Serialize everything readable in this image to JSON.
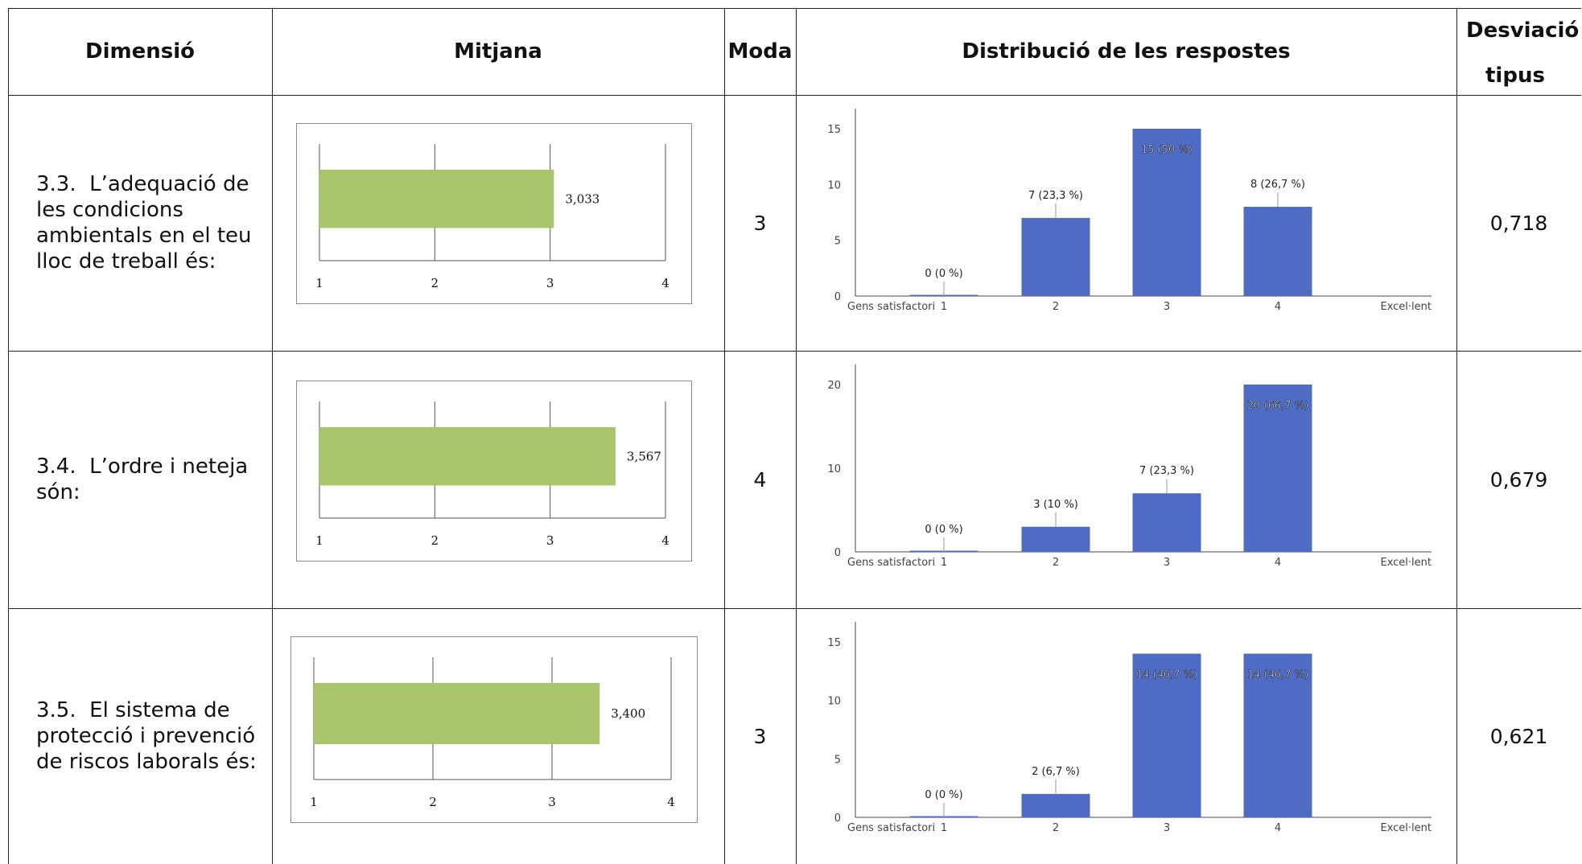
{
  "table": {
    "headers": {
      "dimension": "Dimensió",
      "mean": "Mitjana",
      "mode": "Moda",
      "distribution": "Distribució de les respostes",
      "stddev_line1": "Desviació",
      "stddev_line2": "tipus"
    },
    "rows": [
      {
        "number": "3.3.",
        "label": "L’adequació de les condicions ambientals en el teu lloc de treball és:",
        "mean_label": "3,033",
        "mode": "3",
        "stddev": "0,718"
      },
      {
        "number": "3.4.",
        "label": "L’ordre i neteja són:",
        "mean_label": "3,567",
        "mode": "4",
        "stddev": "0,679"
      },
      {
        "number": "3.5.",
        "label": "El sistema de protecció i prevenció de riscos laborals és:",
        "mean_label": "3,400",
        "mode": "3",
        "stddev": "0,621"
      }
    ]
  },
  "chart_data": [
    {
      "type": "bar",
      "title": "",
      "orientation": "horizontal",
      "categories": [
        "Mitjana"
      ],
      "values": [
        3.033
      ],
      "data_labels": [
        "3,033"
      ],
      "xlim": [
        1,
        4
      ],
      "xticks": [
        "1",
        "2",
        "3",
        "4"
      ],
      "grid": true,
      "bar_color": "#a9c66c"
    },
    {
      "type": "bar",
      "title": "",
      "categories": [
        "1",
        "2",
        "3",
        "4"
      ],
      "values": [
        0,
        7,
        15,
        8
      ],
      "data_labels": [
        "0 (0 %)",
        "7 (23,3 %)",
        "15 (50 %)",
        "8 (26,7 %)"
      ],
      "ylim": [
        0,
        15
      ],
      "yticks": [
        "0",
        "5",
        "10",
        "15"
      ],
      "scale_left_label": "Gens satisfactori",
      "scale_right_label": "Excel·lent",
      "bar_color": "#4f6cc4"
    },
    {
      "type": "bar",
      "title": "",
      "orientation": "horizontal",
      "categories": [
        "Mitjana"
      ],
      "values": [
        3.567
      ],
      "data_labels": [
        "3,567"
      ],
      "xlim": [
        1,
        4
      ],
      "xticks": [
        "1",
        "2",
        "3",
        "4"
      ],
      "grid": true,
      "bar_color": "#a9c66c"
    },
    {
      "type": "bar",
      "title": "",
      "categories": [
        "1",
        "2",
        "3",
        "4"
      ],
      "values": [
        0,
        3,
        7,
        20
      ],
      "data_labels": [
        "0 (0 %)",
        "3 (10 %)",
        "7 (23,3 %)",
        "20 (66,7 %)"
      ],
      "ylim": [
        0,
        20
      ],
      "yticks": [
        "0",
        "10",
        "20"
      ],
      "scale_left_label": "Gens satisfactori",
      "scale_right_label": "Excel·lent",
      "bar_color": "#4f6cc4"
    },
    {
      "type": "bar",
      "title": "",
      "orientation": "horizontal",
      "categories": [
        "Mitjana"
      ],
      "values": [
        3.4
      ],
      "data_labels": [
        "3,400"
      ],
      "xlim": [
        1,
        4
      ],
      "xticks": [
        "1",
        "2",
        "3",
        "4"
      ],
      "grid": true,
      "bar_color": "#a9c66c"
    },
    {
      "type": "bar",
      "title": "",
      "categories": [
        "1",
        "2",
        "3",
        "4"
      ],
      "values": [
        0,
        2,
        14,
        14
      ],
      "data_labels": [
        "0 (0 %)",
        "2 (6,7 %)",
        "14 (46,7 %)",
        "14 (46,7 %)"
      ],
      "ylim": [
        0,
        15
      ],
      "yticks": [
        "0",
        "5",
        "10",
        "15"
      ],
      "scale_left_label": "Gens satisfactori",
      "scale_right_label": "Excel·lent",
      "bar_color": "#4f6cc4"
    }
  ]
}
